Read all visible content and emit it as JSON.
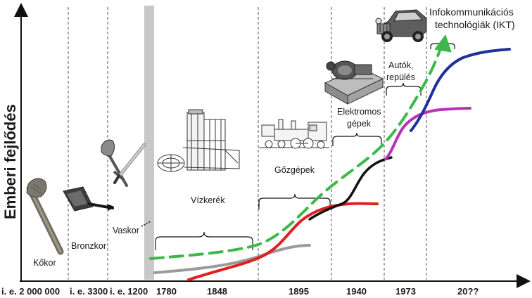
{
  "y_axis_label": "Emberi fejlődés",
  "x_ticks": [
    "i. e. 2 000 000",
    "i. e. 3300",
    "i. e. 1200",
    "1780",
    "1848",
    "1895",
    "1940",
    "1973",
    "20??"
  ],
  "eras": {
    "kokor": "Kőkor",
    "bronzkor": "Bronzkor",
    "vaskor": "Vaskor",
    "vizkerek": "Vízkerék",
    "gozgepek": "Gőzgépek",
    "elektromos_1": "Elektromos",
    "elektromos_2": "gépek",
    "autok_1": "Autók,",
    "autok_2": "repülés",
    "ikt_1": "Infokommunikációs",
    "ikt_2": "technológiák (IKT)"
  },
  "icons": [
    "stone-axe-icon",
    "bronze-axe-icon",
    "iron-weapons-icon",
    "water-wheel-machine-icon",
    "steam-locomotive-icon",
    "electric-motor-icon",
    "vintage-car-icon"
  ],
  "colors": {
    "trend": "#3cb84a",
    "gray_curve": "#9a9a9a",
    "red_curve": "#e0201e",
    "black_curve": "#111111",
    "magenta_curve": "#b632b8",
    "blue_curve": "#21309a",
    "divider_band": "#c8c8c8"
  }
}
